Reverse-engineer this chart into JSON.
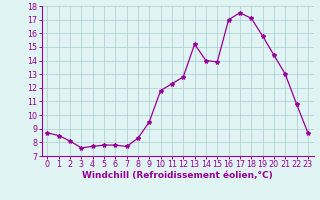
{
  "x": [
    0,
    1,
    2,
    3,
    4,
    5,
    6,
    7,
    8,
    9,
    10,
    11,
    12,
    13,
    14,
    15,
    16,
    17,
    18,
    19,
    20,
    21,
    22,
    23
  ],
  "y": [
    8.7,
    8.5,
    8.1,
    7.6,
    7.7,
    7.8,
    7.8,
    7.7,
    8.3,
    9.5,
    11.8,
    12.3,
    12.8,
    15.2,
    14.0,
    13.9,
    17.0,
    17.5,
    17.1,
    15.8,
    14.4,
    13.0,
    10.8,
    8.7
  ],
  "line_color": "#990099",
  "marker": "*",
  "marker_size": 3,
  "bg_color": "#e0f4f4",
  "grid_color": "#aacccc",
  "xlabel": "Windchill (Refroidissement éolien,°C)",
  "xlabel_color": "#990099",
  "tick_color": "#990099",
  "ylim": [
    7,
    18
  ],
  "xlim": [
    -0.5,
    23.5
  ],
  "yticks": [
    7,
    8,
    9,
    10,
    11,
    12,
    13,
    14,
    15,
    16,
    17,
    18
  ],
  "xticks": [
    0,
    1,
    2,
    3,
    4,
    5,
    6,
    7,
    8,
    9,
    10,
    11,
    12,
    13,
    14,
    15,
    16,
    17,
    18,
    19,
    20,
    21,
    22,
    23
  ],
  "spine_color": "#990099",
  "font_size": 5.8,
  "xlabel_fontsize": 6.5,
  "line_width": 0.9
}
